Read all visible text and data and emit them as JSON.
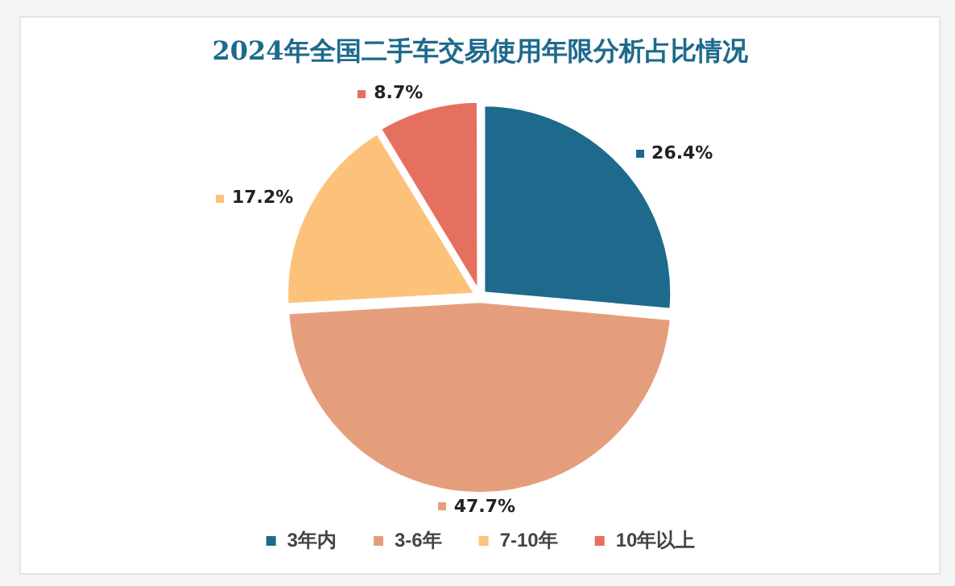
{
  "chart_data": {
    "type": "pie",
    "title": "2024年全国二手车交易使用年限分析占比情况",
    "categories": [
      "3年内",
      "3-6年",
      "7-10年",
      "10年以上"
    ],
    "values": [
      26.4,
      47.7,
      17.2,
      8.7
    ],
    "colors": [
      "#1d6a8c",
      "#e59e7c",
      "#fcc27a",
      "#e57060"
    ],
    "value_labels": [
      "26.4%",
      "47.7%",
      "17.2%",
      "8.7%"
    ],
    "legend": "bottom"
  }
}
